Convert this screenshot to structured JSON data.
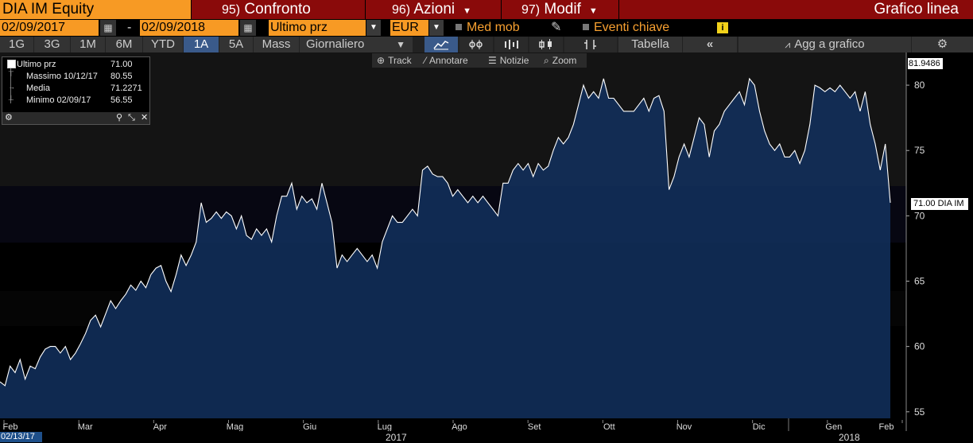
{
  "title_bar": {
    "ticker": "DIA IM Equity",
    "confronto": {
      "num": "95)",
      "label": "Confronto"
    },
    "azioni": {
      "num": "96)",
      "label": "Azioni"
    },
    "modif": {
      "num": "97)",
      "label": "Modif"
    },
    "chart_type": "Grafico linea"
  },
  "range_bar": {
    "start_date": "02/09/2017",
    "separator": "-",
    "end_date": "02/09/2018",
    "field": "Ultimo prz",
    "currency": "EUR",
    "moving_avg": "Med mob",
    "key_events": "Eventi chiave",
    "info": "i"
  },
  "period_bar": {
    "periods": [
      "1G",
      "3G",
      "1M",
      "6M",
      "YTD",
      "1A",
      "5A",
      "Mass"
    ],
    "selected_period": "1A",
    "frequency": "Giornaliero",
    "table": "Tabella",
    "add_to_chart": "Agg a grafico"
  },
  "sub_toolbar": {
    "track": "Track",
    "annotate": "Annotare",
    "news": "Notizie",
    "zoom": "Zoom"
  },
  "legend": {
    "rows": [
      {
        "label": "Ultimo prz",
        "value": "71.00"
      },
      {
        "label": "Massimo 10/12/17",
        "value": "80.55"
      },
      {
        "label": "Media",
        "value": "71.2271"
      },
      {
        "label": "Minimo 02/09/17",
        "value": "56.55"
      }
    ]
  },
  "badges": {
    "last_price": "71.00 DIA IM",
    "high_marker": "81.9486",
    "start_date": "02/13/17"
  },
  "colors": {
    "orange": "#f79a24",
    "red_tab": "#8a0a0a",
    "area_fill": "#0f2a55",
    "line": "#ffffff",
    "selected_button": "#3a5a8a"
  },
  "chart_data": {
    "type": "area",
    "ylim": [
      54.5,
      82.5
    ],
    "yticks": [
      55,
      60,
      65,
      70,
      75,
      80
    ],
    "months": [
      "Feb",
      "Mar",
      "Apr",
      "Mag",
      "Giu",
      "Lug",
      "Ago",
      "Set",
      "Ott",
      "Nov",
      "Dic",
      "Gen",
      "Feb"
    ],
    "years": [
      "2017",
      "2018"
    ],
    "series": [
      {
        "name": "DIA IM",
        "values": [
          57.3,
          57.0,
          58.5,
          58.0,
          59.0,
          57.5,
          58.5,
          58.3,
          59.2,
          59.8,
          60.0,
          60.0,
          59.5,
          60.0,
          59.0,
          59.5,
          60.2,
          61.0,
          62.0,
          62.4,
          61.5,
          62.5,
          63.5,
          62.9,
          63.5,
          64.0,
          64.7,
          64.3,
          65.0,
          64.5,
          65.5,
          66.0,
          66.2,
          65.0,
          64.2,
          65.5,
          67.0,
          66.2,
          67.0,
          68.0,
          71.0,
          69.5,
          69.8,
          70.3,
          69.8,
          70.3,
          70.0,
          69.0,
          70.0,
          68.5,
          68.2,
          69.0,
          68.5,
          69.0,
          68.0,
          70.0,
          71.5,
          71.5,
          72.5,
          70.5,
          71.5,
          71.0,
          71.3,
          70.5,
          72.5,
          71.0,
          69.5,
          66.0,
          67.0,
          66.5,
          67.0,
          67.5,
          67.0,
          66.5,
          67.0,
          66.0,
          68.0,
          69.0,
          70.0,
          69.5,
          69.5,
          70.0,
          70.5,
          70.0,
          73.5,
          73.8,
          73.2,
          73.0,
          73.0,
          72.5,
          71.5,
          72.0,
          71.5,
          71.0,
          71.5,
          71.0,
          71.5,
          71.0,
          70.5,
          70.0,
          72.5,
          72.5,
          73.5,
          74.0,
          73.5,
          74.0,
          73.0,
          74.0,
          73.5,
          73.8,
          75.0,
          76.0,
          75.5,
          76.0,
          77.0,
          78.5,
          80.0,
          79.0,
          79.5,
          79.0,
          80.5,
          79.0,
          79.0,
          78.5,
          78.0,
          78.0,
          78.0,
          78.5,
          79.0,
          78.0,
          79.0,
          79.2,
          78.0,
          72.0,
          73.0,
          74.5,
          75.5,
          74.5,
          76.0,
          77.5,
          77.0,
          74.5,
          76.5,
          77.0,
          78.0,
          78.5,
          79.0,
          79.5,
          78.5,
          80.5,
          80.0,
          78.0,
          76.5,
          75.5,
          75.0,
          75.5,
          74.5,
          74.5,
          75.0,
          74.0,
          75.0,
          77.0,
          80.0,
          79.8,
          79.5,
          79.8,
          79.5,
          80.0,
          79.5,
          79.0,
          79.5,
          78.0,
          79.5,
          77.0,
          75.5,
          73.5,
          75.5,
          71.0
        ]
      }
    ]
  }
}
